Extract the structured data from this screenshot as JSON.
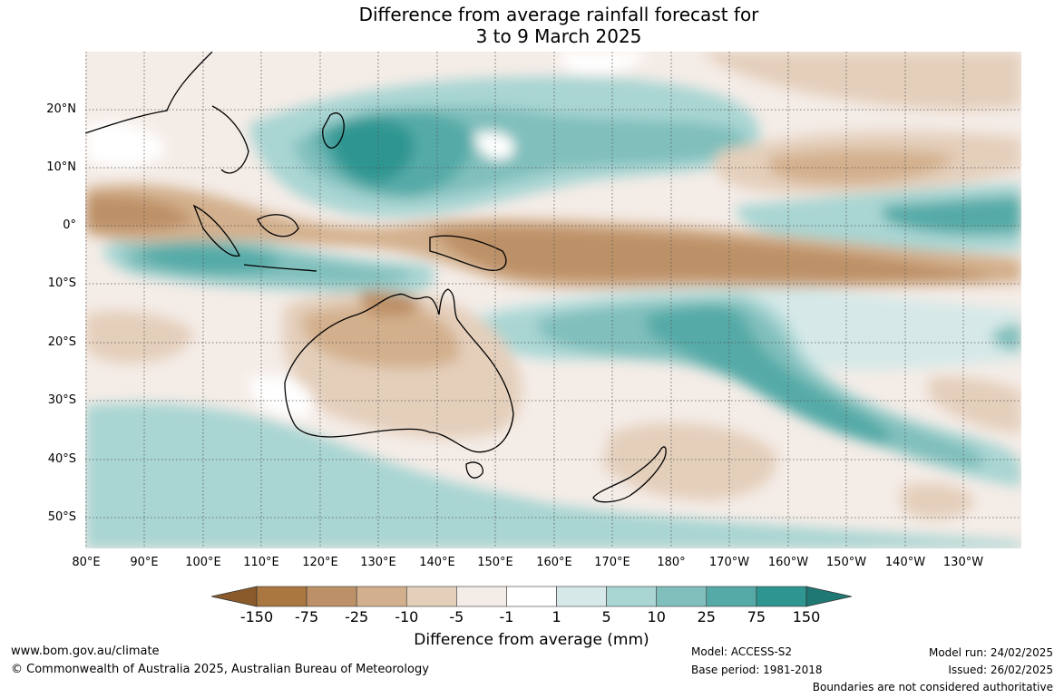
{
  "title": {
    "line1": "Difference from average rainfall forecast for",
    "line2": "3 to 9 March 2025"
  },
  "map": {
    "lat_labels": [
      "20°N",
      "10°N",
      "0°",
      "10°S",
      "20°S",
      "30°S",
      "40°S",
      "50°S"
    ],
    "lon_labels": [
      "80°E",
      "90°E",
      "100°E",
      "110°E",
      "120°E",
      "130°E",
      "140°E",
      "150°E",
      "160°E",
      "170°E",
      "180°",
      "170°W",
      "160°W",
      "150°W",
      "140°W",
      "130°W"
    ]
  },
  "legend": {
    "title": "Difference from average (mm)",
    "tick_labels": [
      "-150",
      "-75",
      "-25",
      "-10",
      "-5",
      "-1",
      "1",
      "5",
      "10",
      "25",
      "75",
      "150"
    ],
    "colors": [
      "#8b5a2b",
      "#a9773f",
      "#bd9167",
      "#d3b08d",
      "#e4cfbb",
      "#f4ece7",
      "#ffffff",
      "#d6e9e8",
      "#a9d5d3",
      "#80bfbc",
      "#55aaa7",
      "#2e9590",
      "#1f7874"
    ]
  },
  "footer": {
    "website": "www.bom.gov.au/climate",
    "copyright": "© Commonwealth of Australia 2025, Australian Bureau of Meteorology",
    "model": "Model: ACCESS-S2",
    "base_period": "Base period: 1981-2018",
    "model_run": "Model run: 24/02/2025",
    "issued": "Issued: 26/02/2025",
    "disclaimer": "Boundaries are not considered authoritative"
  }
}
